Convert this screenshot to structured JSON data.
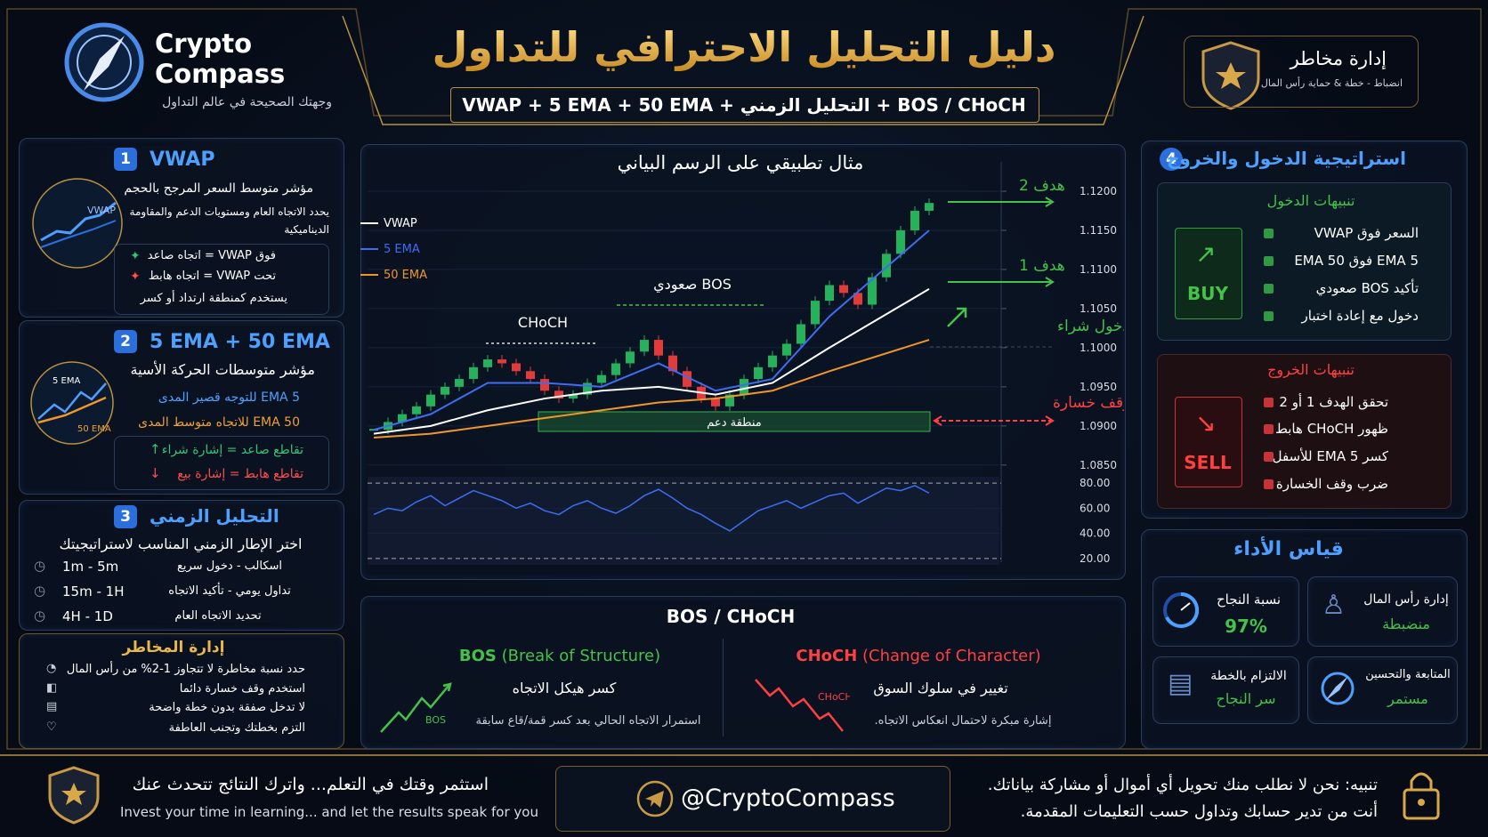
{
  "header": {
    "brand_1": "Crypto",
    "brand_2": "Compass",
    "tagline": "وجهتك الصحيحة في عالم التداول",
    "title": "دليل التحليل الاحترافي للتداول",
    "subtitle": "VWAP + 5 EMA + 50 EMA + التحليل الزمني + BOS / CHoCH",
    "badge_title": "إدارة مخاطر",
    "badge_subtitle": "انضباط - خطة & حماية رأس المال"
  },
  "vwap": {
    "number": "1",
    "title": "VWAP",
    "icon_label": "VWAP",
    "description": "مؤشر متوسط السعر المرجح بالحجم",
    "detail": "يحدد الاتجاه العام ومستويات الدعم والمقاومة الديناميكية",
    "rules": [
      "فوق VWAP = اتجاه صاعد",
      "تحت VWAP = اتجاه هابط",
      "يستخدم كمنطقة ارتداد أو كسر"
    ]
  },
  "ema": {
    "number": "2",
    "title": "5 EMA + 50 EMA",
    "icon_labels": [
      "5 EMA",
      "50 EMA"
    ],
    "description": "مؤشر متوسطات الحركة الأسية",
    "lines": [
      "5 EMA للتوجه قصير المدى",
      "50 EMA للاتجاه متوسط المدى"
    ],
    "signals": [
      "تقاطع صاعد = إشارة شراء",
      "تقاطع هابط = إشارة بيع"
    ]
  },
  "timeframes": {
    "number": "3",
    "title": "التحليل الزمني",
    "description": "اختر الإطار الزمني المناسب لاستراتيجيتك",
    "rows": [
      {
        "timeframe": "1m - 5m",
        "use": "اسكالب - دخول سريع"
      },
      {
        "timeframe": "15m - 1H",
        "use": "تداول يومي - تأكيد الاتجاه"
      },
      {
        "timeframe": "4H - 1D",
        "use": "تحديد الاتجاه العام"
      }
    ]
  },
  "risk": {
    "title": "إدارة المخاطر",
    "items": [
      "حدد نسبة مخاطرة لا تتجاوز 1-2% من رأس المال",
      "استخدم وقف خسارة دائما",
      "لا تدخل صفقة بدون خطة واضحة",
      "التزم بخطتك وتجنب العاطفة"
    ]
  },
  "chart_data": {
    "type": "candlestick",
    "title": "مثال تطبيقي على الرسم البياني",
    "closes": [
      1.0895,
      1.0905,
      1.0915,
      1.0925,
      1.094,
      1.095,
      1.096,
      1.0975,
      1.0985,
      1.098,
      1.097,
      1.096,
      1.0945,
      1.0935,
      1.094,
      1.0955,
      1.0965,
      1.098,
      1.0995,
      1.101,
      1.099,
      1.097,
      1.095,
      1.0935,
      1.0925,
      1.094,
      1.096,
      1.0975,
      1.099,
      1.1005,
      1.103,
      1.106,
      1.108,
      1.107,
      1.1055,
      1.109,
      1.112,
      1.115,
      1.1175,
      1.1185
    ],
    "up_color": "#26b25a",
    "down_color": "#e23b3b",
    "series": [
      {
        "name": "VWAP",
        "color": "#ffffff",
        "x": [
          0,
          4,
          8,
          12,
          16,
          20,
          24,
          28,
          32,
          39
        ],
        "values": [
          1.089,
          1.09,
          1.092,
          1.0935,
          1.0945,
          1.095,
          1.094,
          1.0955,
          1.1,
          1.1075
        ]
      },
      {
        "name": "5 EMA",
        "color": "#3d6df0",
        "x": [
          0,
          4,
          8,
          12,
          16,
          20,
          24,
          28,
          32,
          39
        ],
        "values": [
          1.0895,
          1.0915,
          1.0955,
          1.0955,
          1.095,
          1.098,
          1.0945,
          1.096,
          1.104,
          1.115
        ]
      },
      {
        "name": "50 EMA",
        "color": "#f0962a",
        "x": [
          0,
          4,
          8,
          12,
          16,
          20,
          24,
          28,
          32,
          39
        ],
        "values": [
          1.0885,
          1.089,
          1.09,
          1.091,
          1.092,
          1.093,
          1.0935,
          1.0945,
          1.097,
          1.101
        ]
      }
    ],
    "ylim": [
      1.0835,
      1.1225
    ],
    "yticks": [
      {
        "value": 1.12,
        "label": "1.1200"
      },
      {
        "value": 1.115,
        "label": "1.1150"
      },
      {
        "value": 1.11,
        "label": "1.1100"
      },
      {
        "value": 1.105,
        "label": "1.1050"
      },
      {
        "value": 1.1,
        "label": "1.1000"
      },
      {
        "value": 1.095,
        "label": "1.0950"
      },
      {
        "value": 1.09,
        "label": "1.0900"
      },
      {
        "value": 1.085,
        "label": "1.0850"
      }
    ],
    "grid": true,
    "annotations": {
      "target_2": "هدف 2",
      "target_1": "هدف 1",
      "entry": "دخول شراء",
      "stop": "وقف خسارة",
      "support": "منطقة دعم",
      "bos": "BOS صعودي",
      "choch": "CHoCH"
    },
    "oscillator": {
      "type": "line",
      "color": "#3d6df0",
      "values": [
        55,
        60,
        58,
        65,
        70,
        62,
        68,
        74,
        70,
        66,
        60,
        64,
        58,
        55,
        62,
        66,
        60,
        56,
        62,
        70,
        75,
        68,
        60,
        55,
        48,
        42,
        50,
        58,
        62,
        66,
        60,
        65,
        70,
        72,
        64,
        70,
        76,
        74,
        78,
        72
      ],
      "ylim": [
        15,
        85
      ],
      "yticks": [
        {
          "value": 80,
          "label": "80.00"
        },
        {
          "value": 60,
          "label": "60.00"
        },
        {
          "value": 40,
          "label": "40.00"
        },
        {
          "value": 20,
          "label": "20.00"
        }
      ]
    }
  },
  "bos_choch": {
    "title": "BOS / CHoCH",
    "bos": {
      "abbr": "BOS",
      "full": "(Break of Structure)",
      "description": "كسر هيكل الاتجاه",
      "note": "استمرار الاتجاه الحالي بعد كسر قمة/قاع سابقة",
      "icon_label": "BOS"
    },
    "choch": {
      "abbr": "CHoCH",
      "full": "(Change of Character)",
      "description": "تغيير في سلوك السوق",
      "note": "إشارة مبكرة لاحتمال انعكاس الاتجاه.",
      "icon_label": "CHoCH"
    }
  },
  "strategy": {
    "number": "4",
    "title": "استراتيجية الدخول والخروج",
    "entry": {
      "title": "تنبيهات الدخول",
      "button": "BUY",
      "items": [
        "السعر فوق VWAP",
        "5 EMA فوق 50 EMA",
        "تأكيد BOS صعودي",
        "دخول مع إعادة اختبار"
      ]
    },
    "exit": {
      "title": "تنبيهات الخروج",
      "button": "SELL",
      "items": [
        "تحقق الهدف 1 أو 2",
        "ظهور CHoCH هابط",
        "كسر 5 EMA للأسفل",
        "ضرب وقف الخسارة"
      ]
    }
  },
  "performance": {
    "title": "قياس الأداء",
    "cards": [
      {
        "label": "نسبة النجاح",
        "value": "97%"
      },
      {
        "label": "إدارة رأس المال",
        "value": "منضبطة"
      },
      {
        "label": "الالتزام بالخطة",
        "value": "سر النجاح"
      },
      {
        "label": "المتابعة والتحسين",
        "value": "مستمر"
      }
    ]
  },
  "footer": {
    "motto_ar": "استثمر وقتك في التعلم... واترك النتائج تتحدث عنك",
    "motto_en": "Invest your time in learning... and let the results speak for you",
    "handle": "@CryptoCompass",
    "warning_1": "تنبيه: نحن لا نطلب منك تحويل أي أموال أو مشاركة بياناتك.",
    "warning_2": "أنت من تدير حسابك وتداول حسب التعليمات المقدمة."
  }
}
